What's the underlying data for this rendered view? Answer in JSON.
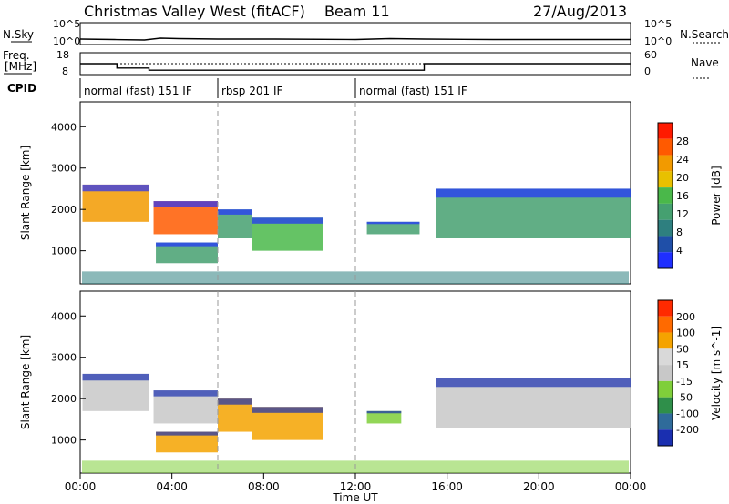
{
  "header": {
    "title": "Christmas Valley West (fitACF)",
    "beam": "Beam 11",
    "date": "27/Aug/2013"
  },
  "labels": {
    "nsky": "N.Sky",
    "nsearch": "N.Search",
    "freq_top": "Freq.",
    "freq_unit": "[MHz]",
    "nave": "Nave",
    "cpid": "CPID",
    "nsky_top": "10^5",
    "nsky_bot": "10^0",
    "freq_ticks": [
      "18",
      "8"
    ],
    "nave_ticks": [
      "60",
      "0"
    ],
    "x_title": "Time UT"
  },
  "colors": {
    "power": [
      "#1f2fff",
      "#1f4fa8",
      "#2e7f7f",
      "#45a070",
      "#4ab84a",
      "#e8c000",
      "#f29a00",
      "#ff5a00",
      "#ff1a00"
    ],
    "velocity": [
      "#1a2fb0",
      "#2f6b9a",
      "#2f8f4a",
      "#7fcf3a",
      "#c8c8c8",
      "#d9d9d9",
      "#f5a300",
      "#ff6a00",
      "#ff2a00"
    ]
  },
  "chart_data": [
    {
      "type": "line",
      "name": "status-panel",
      "series": [
        {
          "name": "N.Sky",
          "x": [
            0,
            1.5,
            2.8,
            3.5,
            4.3,
            6.0,
            8.5,
            12.0,
            13.5,
            15.0,
            18.0,
            24.0
          ],
          "values": [
            1.2,
            1.1,
            1.0,
            1.4,
            1.3,
            1.2,
            1.2,
            1.1,
            1.3,
            1.2,
            1.1,
            1.1
          ]
        },
        {
          "name": "Freq.",
          "x": [
            0,
            1.6,
            1.6,
            3.0,
            3.0,
            12.0,
            12.0,
            15.0,
            15.0,
            24.0
          ],
          "values": [
            13,
            13,
            11,
            11,
            10,
            10,
            10,
            10,
            13,
            13
          ]
        }
      ],
      "cpid_segments": [
        {
          "label": "normal (fast) 151 IF",
          "start": 0,
          "end": 6.0
        },
        {
          "label": "rbsp 201 IF",
          "start": 6.0,
          "end": 12.0
        },
        {
          "label": "normal (fast) 151 IF",
          "start": 12.0,
          "end": 24.0
        }
      ]
    },
    {
      "type": "heatmap",
      "name": "power",
      "ylabel": "Slant Range [km]",
      "zlabel": "Power [dB]",
      "x_ticks": [
        "00:00",
        "04:00",
        "08:00",
        "12:00",
        "16:00",
        "20:00",
        "00:00"
      ],
      "y_ticks": [
        "1000",
        "2000",
        "3000",
        "4000"
      ],
      "ylim": [
        200,
        4600
      ],
      "colorbar_ticks": [
        "4",
        "8",
        "12",
        "16",
        "20",
        "24",
        "28"
      ],
      "features": [
        {
          "x": [
            0.1,
            3.0
          ],
          "y": [
            1700,
            2600
          ],
          "level": 6
        },
        {
          "x": [
            3.2,
            6.0
          ],
          "y": [
            1400,
            2200
          ],
          "level": 7
        },
        {
          "x": [
            3.3,
            6.0
          ],
          "y": [
            700,
            1200
          ],
          "level": 3
        },
        {
          "x": [
            6.0,
            7.5
          ],
          "y": [
            1300,
            2000
          ],
          "level": 3
        },
        {
          "x": [
            7.5,
            10.6
          ],
          "y": [
            1000,
            1800
          ],
          "level": 4
        },
        {
          "x": [
            12.5,
            14.8
          ],
          "y": [
            1400,
            1700
          ],
          "level": 3
        },
        {
          "x": [
            15.5,
            24.0
          ],
          "y": [
            1300,
            2500
          ],
          "level": 3
        }
      ]
    },
    {
      "type": "heatmap",
      "name": "velocity",
      "ylabel": "Slant Range [km]",
      "zlabel": "Velocity [m s^-1]",
      "x_ticks": [
        "00:00",
        "04:00",
        "08:00",
        "12:00",
        "16:00",
        "20:00",
        "00:00"
      ],
      "y_ticks": [
        "1000",
        "2000",
        "3000",
        "4000"
      ],
      "ylim": [
        200,
        4600
      ],
      "colorbar_ticks": [
        "200",
        "100",
        "50",
        "15",
        "-15",
        "-50",
        "-100",
        "-200"
      ],
      "features": [
        {
          "x": [
            0.1,
            3.0
          ],
          "y": [
            1700,
            2600
          ],
          "level": 4
        },
        {
          "x": [
            3.2,
            6.0
          ],
          "y": [
            1400,
            2200
          ],
          "level": 4
        },
        {
          "x": [
            3.3,
            6.0
          ],
          "y": [
            700,
            1200
          ],
          "level": 6
        },
        {
          "x": [
            6.0,
            7.5
          ],
          "y": [
            1200,
            2000
          ],
          "level": 6
        },
        {
          "x": [
            7.5,
            10.6
          ],
          "y": [
            1000,
            1800
          ],
          "level": 6
        },
        {
          "x": [
            12.5,
            14.0
          ],
          "y": [
            1400,
            1700
          ],
          "level": 3
        },
        {
          "x": [
            15.5,
            24.0
          ],
          "y": [
            1300,
            2500
          ],
          "level": 4
        }
      ]
    }
  ]
}
